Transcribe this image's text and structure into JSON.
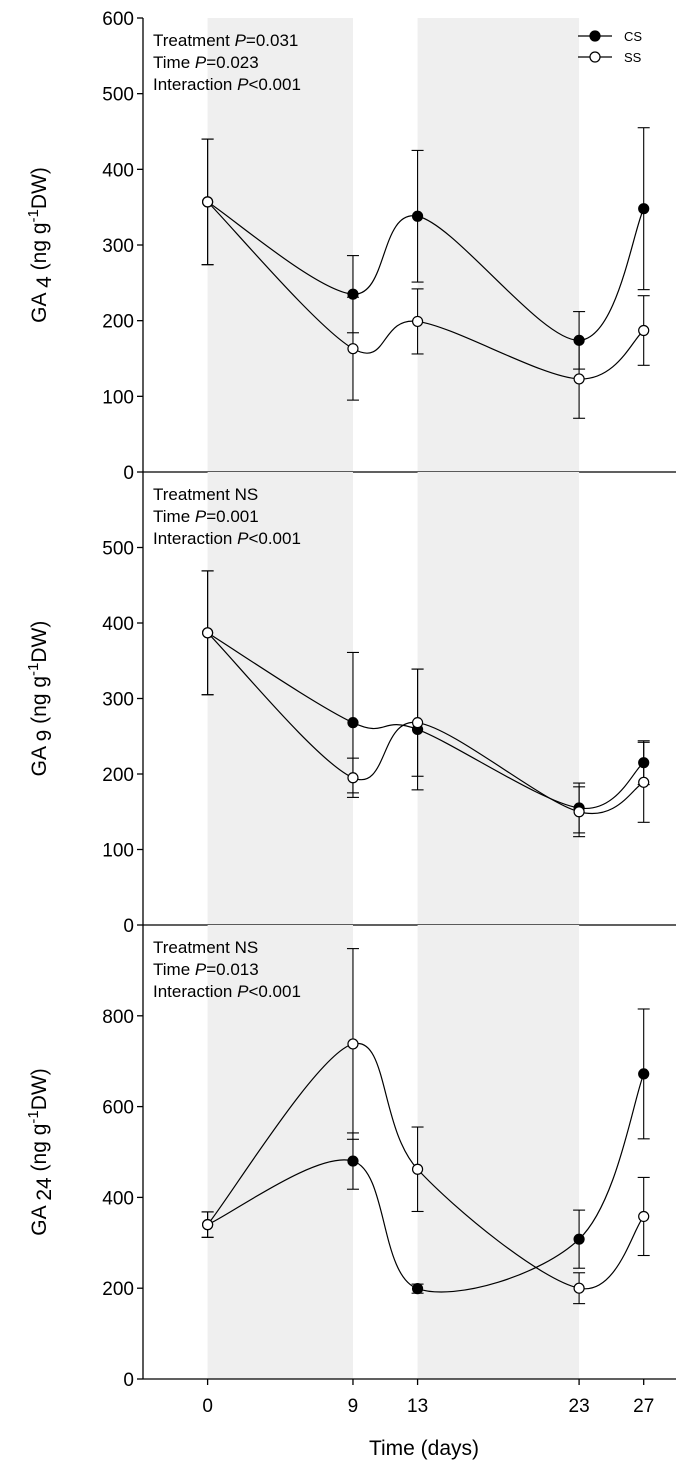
{
  "chart_data": {
    "type": "line",
    "xlabel": "Time (days)",
    "x": [
      0,
      9,
      13,
      23,
      27
    ],
    "xtick_labels": [
      "0",
      "9",
      "13",
      "23",
      "27"
    ],
    "xlim": [
      -4,
      29
    ],
    "shaded_bands": [
      [
        0,
        9
      ],
      [
        13,
        23
      ]
    ],
    "band_color": "#efefef",
    "legend": {
      "position": "top-right",
      "entries": [
        {
          "label": "CS",
          "marker": "filled-circle"
        },
        {
          "label": "SS",
          "marker": "open-circle"
        }
      ]
    },
    "panels": [
      {
        "ylabel": {
          "main": "GA ",
          "sub": "4",
          "unit": " (ng g",
          "sup": "-1",
          "tail": "DW)"
        },
        "ylim": [
          0,
          600
        ],
        "yticks": [
          0,
          100,
          200,
          300,
          400,
          500,
          600
        ],
        "ytick_labels": [
          "0",
          "100",
          "200",
          "300",
          "400",
          "500",
          "600"
        ],
        "annotation": [
          [
            {
              "t": "Treatment "
            },
            {
              "t": "P",
              "i": true
            },
            {
              "t": "=0.031"
            }
          ],
          [
            {
              "t": "Time "
            },
            {
              "t": "P",
              "i": true
            },
            {
              "t": "=0.023"
            }
          ],
          [
            {
              "t": "Interaction "
            },
            {
              "t": "P",
              "i": true
            },
            {
              "t": "<0.001"
            }
          ]
        ],
        "series": [
          {
            "name": "CS",
            "values": [
              357,
              235,
              338,
              174,
              348
            ],
            "errors": [
              83,
              51,
              87,
              38,
              107
            ]
          },
          {
            "name": "SS",
            "values": [
              357,
              163,
              199,
              123,
              187
            ],
            "errors": [
              83,
              68,
              43,
              52,
              46
            ]
          }
        ]
      },
      {
        "ylabel": {
          "main": "GA ",
          "sub": "9",
          "unit": " (ng g",
          "sup": "-1",
          "tail": "DW)"
        },
        "ylim": [
          0,
          600
        ],
        "yticks": [
          0,
          100,
          200,
          300,
          400,
          500
        ],
        "ytick_labels": [
          "0",
          "100",
          "200",
          "300",
          "400",
          "500"
        ],
        "annotation": [
          [
            {
              "t": "Treatment NS"
            }
          ],
          [
            {
              "t": "Time "
            },
            {
              "t": "P",
              "i": true
            },
            {
              "t": "=0.001"
            }
          ],
          [
            {
              "t": "Interaction "
            },
            {
              "t": "P",
              "i": true
            },
            {
              "t": "<0.001"
            }
          ]
        ],
        "series": [
          {
            "name": "CS",
            "values": [
              387,
              268,
              259,
              155,
              215
            ],
            "errors": [
              82,
              93,
              80,
              33,
              29
            ]
          },
          {
            "name": "SS",
            "values": [
              387,
              195,
              268,
              150,
              189
            ],
            "errors": [
              82,
              26,
              71,
              33,
              53
            ]
          }
        ]
      },
      {
        "ylabel": {
          "main": "GA ",
          "sub": "24",
          "unit": " (ng g",
          "sup": "-1",
          "tail": "DW)"
        },
        "ylim": [
          0,
          1000
        ],
        "yticks": [
          0,
          200,
          400,
          600,
          800
        ],
        "ytick_labels": [
          "0",
          "200",
          "400",
          "600",
          "800"
        ],
        "annotation": [
          [
            {
              "t": "Treatment NS"
            }
          ],
          [
            {
              "t": "Time "
            },
            {
              "t": "P",
              "i": true
            },
            {
              "t": "=0.013"
            }
          ],
          [
            {
              "t": "Interaction "
            },
            {
              "t": "P",
              "i": true
            },
            {
              "t": "<0.001"
            }
          ]
        ],
        "series": [
          {
            "name": "CS",
            "values": [
              340,
              480,
              199,
              308,
              672
            ],
            "errors": [
              28,
              62,
              10,
              64,
              143
            ]
          },
          {
            "name": "SS",
            "values": [
              340,
              738,
              462,
              200,
              358
            ],
            "errors": [
              28,
              210,
              93,
              34,
              86
            ]
          }
        ]
      }
    ]
  }
}
